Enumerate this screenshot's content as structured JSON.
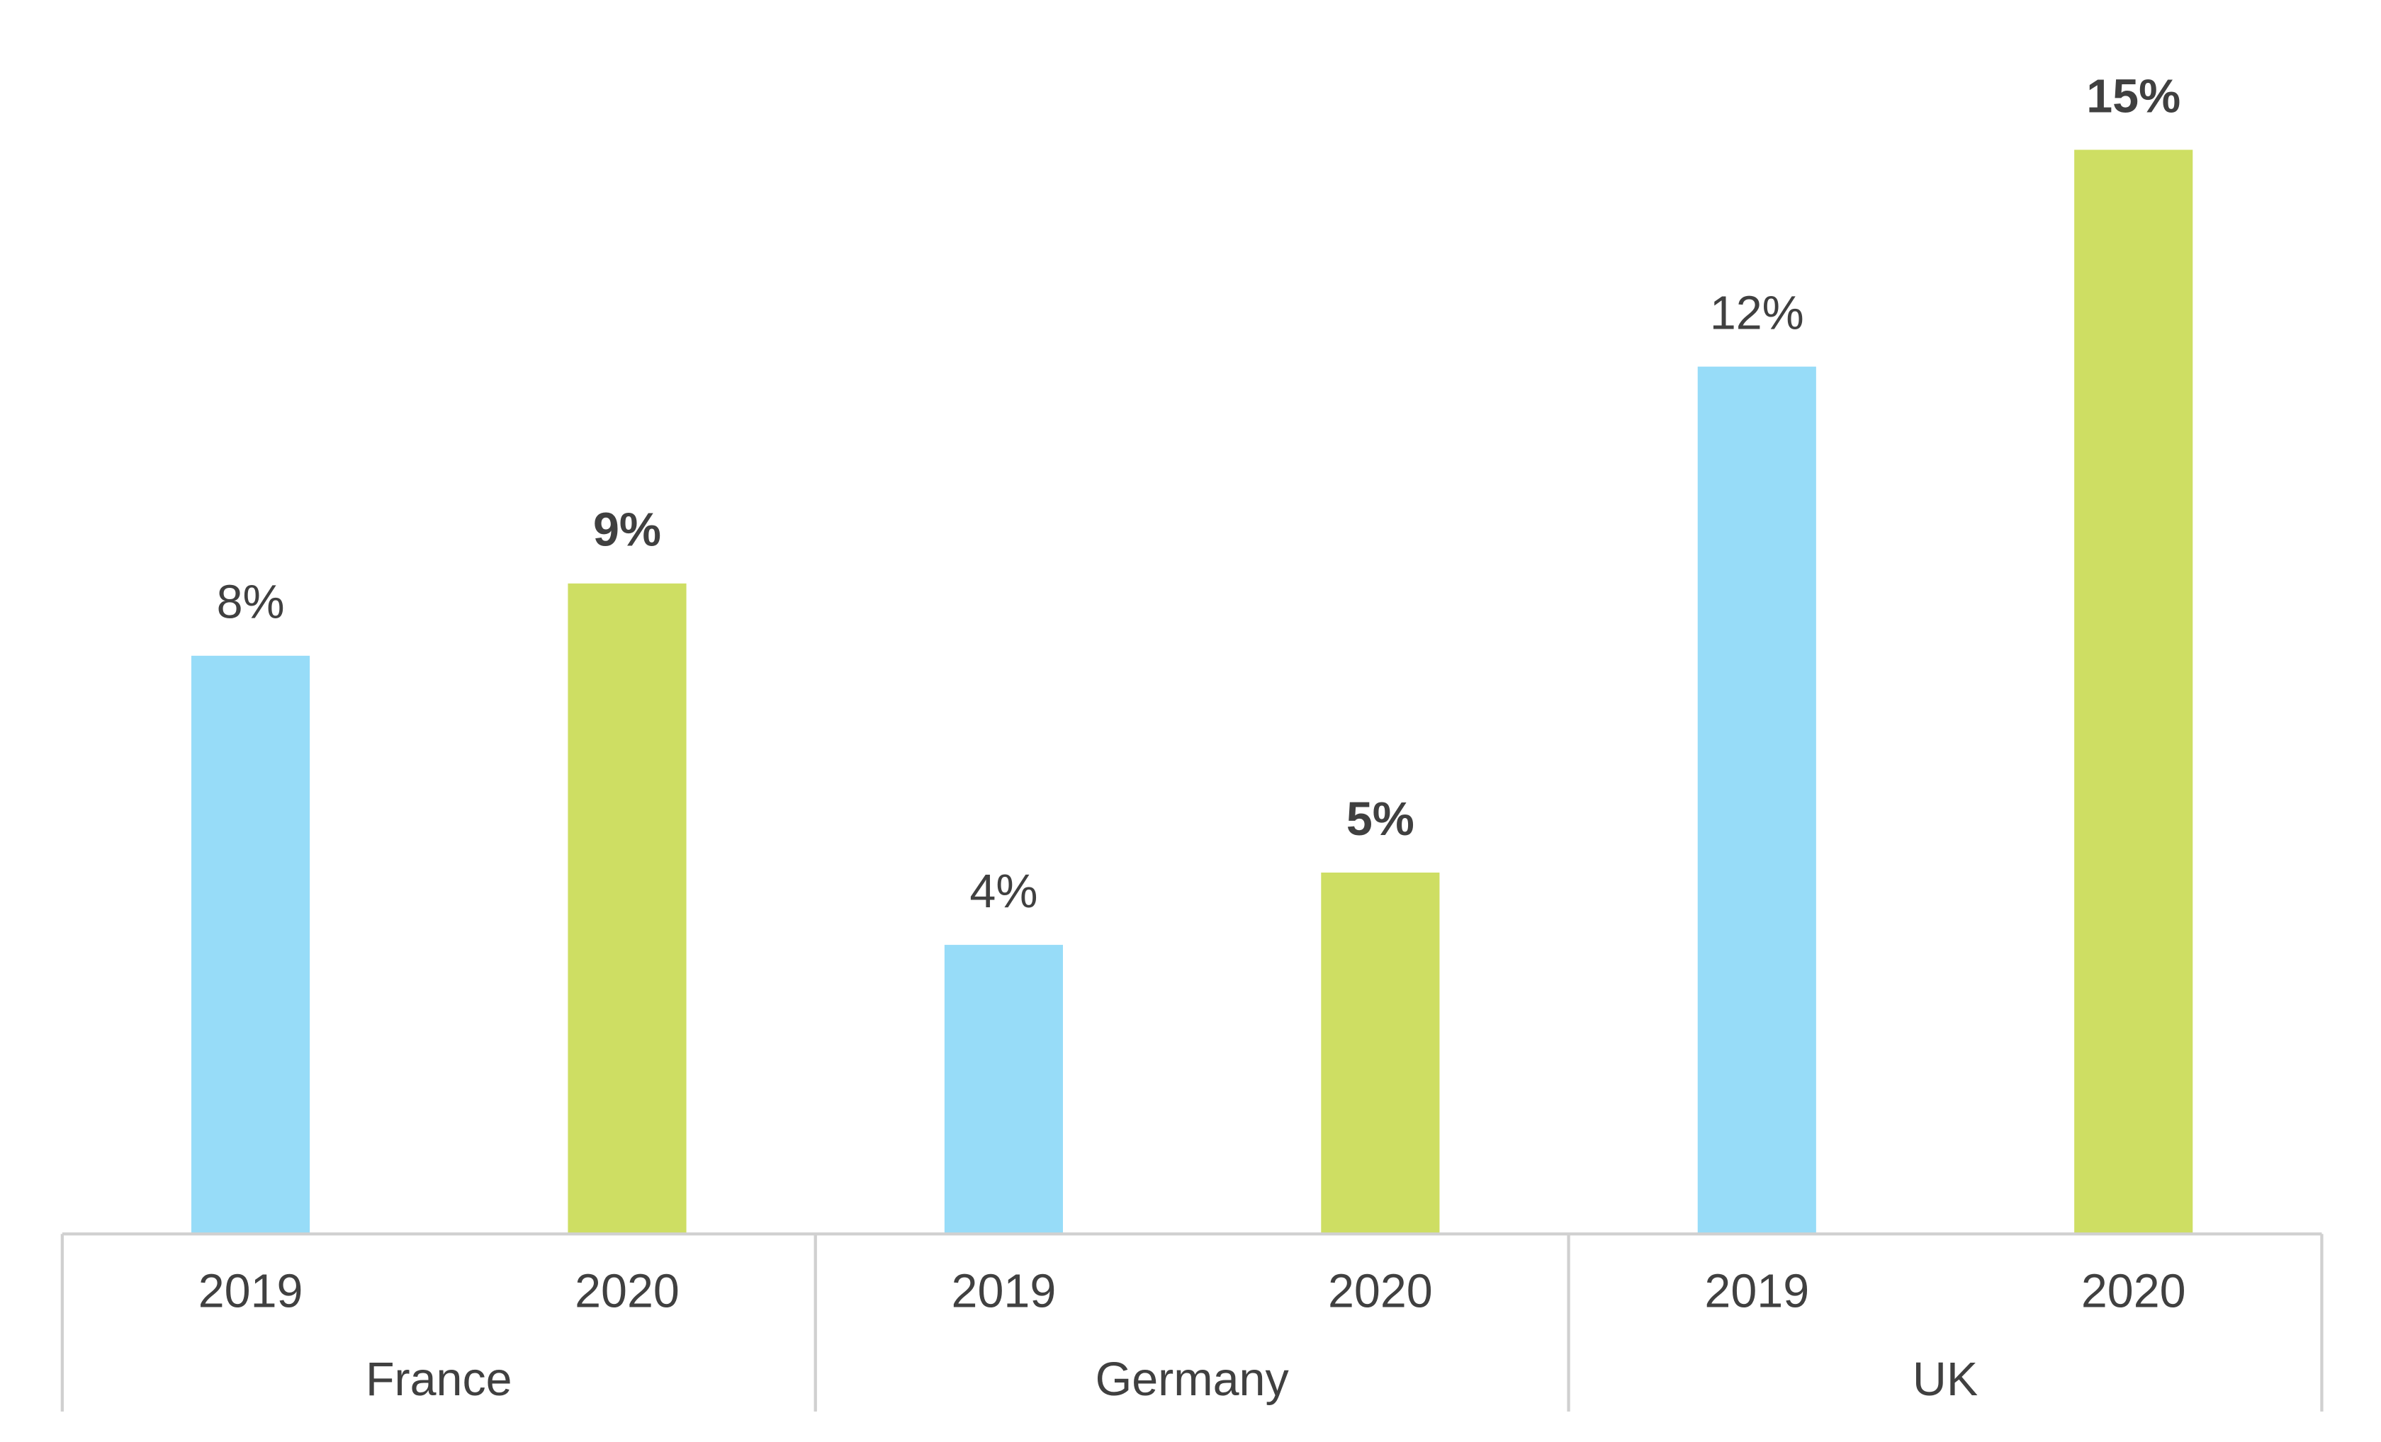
{
  "chart_data": {
    "type": "grouped_bar",
    "groups": [
      {
        "name": "France",
        "categories": [
          "2019",
          "2020"
        ],
        "values": [
          8,
          9
        ],
        "value_labels": [
          "8%",
          "9%"
        ]
      },
      {
        "name": "Germany",
        "categories": [
          "2019",
          "2020"
        ],
        "values": [
          4,
          5
        ],
        "value_labels": [
          "4%",
          "5%"
        ]
      },
      {
        "name": "UK",
        "categories": [
          "2019",
          "2020"
        ],
        "values": [
          12,
          15
        ],
        "value_labels": [
          "12%",
          "15%"
        ]
      }
    ],
    "colors": [
      "#97dcf8",
      "#cede63"
    ],
    "value_label_bold": [
      false,
      true
    ],
    "ylim": [
      0,
      16
    ],
    "grid": false
  }
}
